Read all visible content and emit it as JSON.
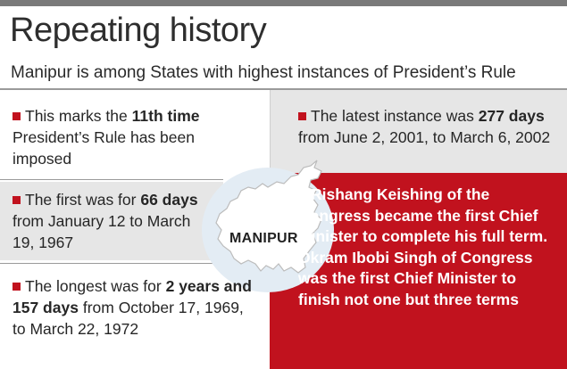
{
  "title": "Repeating history",
  "subtitle": "Manipur is among States with highest instances of President’s Rule",
  "map_label": "MANIPUR",
  "colors": {
    "accent_red": "#c1121e",
    "panel_gray": "#e6e6e6",
    "top_bar": "#7a7a7a"
  },
  "facts": {
    "eleventh": {
      "pre": "This marks the ",
      "bold": "11th time",
      "post": "President’s Rule has been imposed"
    },
    "latest": {
      "pre": "The latest instance was",
      "bold": "277 days",
      "post": "from June 2, 2001, to March 6, 2002"
    },
    "first": {
      "pre": "The first was for",
      "bold": "66 days",
      "post": "from January 12 to March 19, 1967"
    },
    "longest": {
      "pre": "The longest was for",
      "bold": "2 years and 157 days",
      "post": "from October 17, 1969, to March 22, 1972"
    },
    "cm": {
      "text": "Rishang Keishing of the Congress became the first Chief Minister to complete his full term. Okram Ibobi Singh of Congress was the first Chief Minister to finish not one but three terms"
    }
  }
}
